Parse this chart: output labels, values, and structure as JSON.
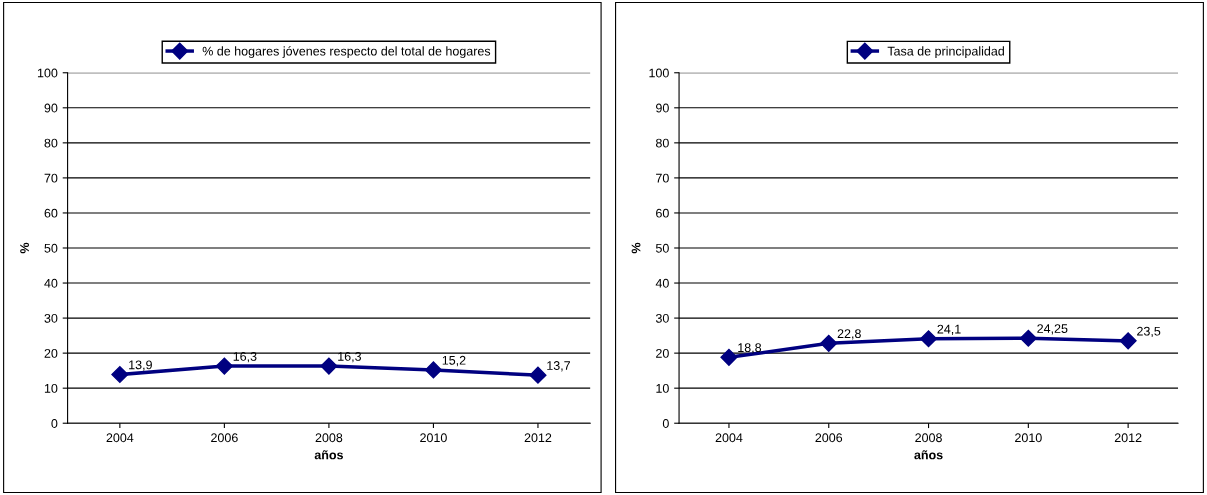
{
  "chart_data": [
    {
      "type": "line",
      "xlabel": "años",
      "ylabel": "%",
      "categories": [
        "2004",
        "2006",
        "2008",
        "2010",
        "2012"
      ],
      "series": [
        {
          "name": "% de hogares jóvenes respecto del total de hogares",
          "color": "#000080",
          "values": [
            13.9,
            16.3,
            16.3,
            15.2,
            13.7
          ],
          "value_labels": [
            "13,9",
            "16,3",
            "16,3",
            "15,2",
            "13,7"
          ]
        }
      ],
      "ylim": [
        0,
        100
      ],
      "yticks": [
        0,
        10,
        20,
        30,
        40,
        50,
        60,
        70,
        80,
        90,
        100
      ],
      "grid": "y",
      "legend": "top",
      "marker": "diamond",
      "line_style": "solid"
    },
    {
      "type": "line",
      "xlabel": "años",
      "ylabel": "%",
      "categories": [
        "2004",
        "2006",
        "2008",
        "2010",
        "2012"
      ],
      "series": [
        {
          "name": "Tasa de principalidad",
          "color": "#000080",
          "values": [
            18.8,
            22.8,
            24.1,
            24.25,
            23.5
          ],
          "value_labels": [
            "18,8",
            "22,8",
            "24,1",
            "24,25",
            "23,5"
          ]
        }
      ],
      "ylim": [
        0,
        100
      ],
      "yticks": [
        0,
        10,
        20,
        30,
        40,
        50,
        60,
        70,
        80,
        90,
        100
      ],
      "grid": "y",
      "legend": "top",
      "marker": "diamond",
      "line_style": "solid"
    }
  ]
}
